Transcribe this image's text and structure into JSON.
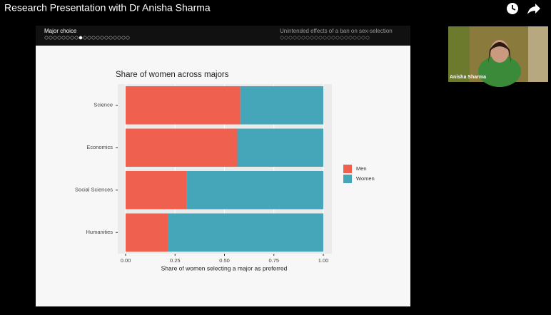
{
  "header": {
    "title": "Research Presentation with Dr Anisha Sharma"
  },
  "slide": {
    "nav_left": "Major choice",
    "nav_right": "Unintended effects of a ban on sex-selection"
  },
  "chart": {
    "type": "stacked-bar-horizontal",
    "title": "Share of women across majors",
    "categories": [
      "Science",
      "Economics",
      "Social Sciences",
      "Humanities"
    ],
    "series": [
      {
        "name": "Men",
        "color": "#f0604e",
        "values": [
          0.58,
          0.565,
          0.31,
          0.215
        ]
      },
      {
        "name": "Women",
        "color": "#44a6b8",
        "values": [
          0.42,
          0.435,
          0.69,
          0.785
        ]
      }
    ],
    "xlabel": "Share of women selecting a major as preferred",
    "xlim": [
      0,
      1
    ],
    "xticks": [
      {
        "value": 0,
        "label": "0.00"
      },
      {
        "value": 0.25,
        "label": "0.25"
      },
      {
        "value": 0.5,
        "label": "0.50"
      },
      {
        "value": 0.75,
        "label": "0.75"
      },
      {
        "value": 1,
        "label": "1.00"
      }
    ]
  },
  "presenter": {
    "name": "Anisha Sharma"
  }
}
